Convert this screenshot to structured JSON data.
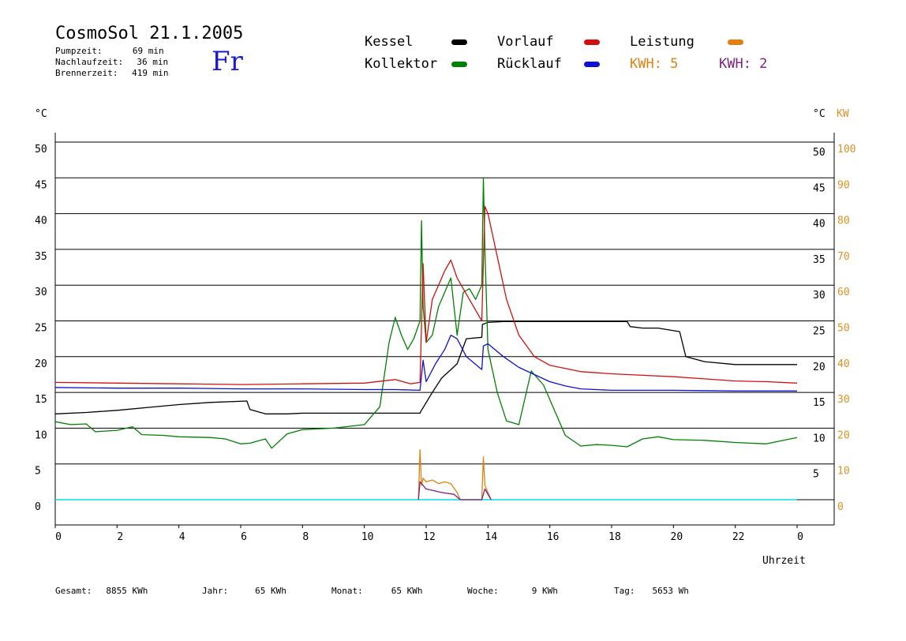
{
  "header": {
    "title": "CosmoSol 21.1.2005",
    "day": "Fr",
    "stats": [
      {
        "label": "Pumpzeit:",
        "value": "69 min"
      },
      {
        "label": "Nachlaufzeit:",
        "value": "36 min"
      },
      {
        "label": "Brennerzeit:",
        "value": "419 min"
      }
    ]
  },
  "legend": {
    "kessel": "Kessel",
    "kollektor": "Kollektor",
    "vorlauf": "Vorlauf",
    "ruecklauf": "Rücklauf",
    "leistung": "Leistung",
    "kwh1": "KWH: 5",
    "kwh2": "KWH: 2"
  },
  "colors": {
    "kessel": "#000000",
    "kollektor": "#008000",
    "vorlauf": "#d01010",
    "ruecklauf": "#1010d0",
    "leistung": "#e08010",
    "kwh2": "#802080",
    "pump": "#00dddd",
    "kw_axis": "#e09020"
  },
  "footer": [
    {
      "label": "Gesamt:",
      "value": "8855 KWh"
    },
    {
      "label": "Jahr:",
      "value": "65 KWh"
    },
    {
      "label": "Monat:",
      "value": "65 KWh"
    },
    {
      "label": "Woche:",
      "value": "9 KWh"
    },
    {
      "label": "Tag:",
      "value": "5653 Wh"
    }
  ],
  "chart_data": {
    "type": "line",
    "xlabel": "Uhrzeit",
    "ylabel_left": "°C",
    "ylabel_right": "°C",
    "ylabel_right2": "KW",
    "xlim": [
      0,
      24
    ],
    "ylim": [
      0,
      50
    ],
    "ylim_kw": [
      0,
      100
    ],
    "x_ticks": [
      "0",
      "2",
      "4",
      "6",
      "8",
      "10",
      "12",
      "14",
      "16",
      "18",
      "20",
      "22",
      "0"
    ],
    "y_ticks": [
      0,
      5,
      10,
      15,
      20,
      25,
      30,
      35,
      40,
      45,
      50
    ],
    "y_ticks_right": [
      5,
      10,
      15,
      20,
      25,
      30,
      35,
      40,
      45,
      50
    ],
    "kw_ticks": [
      0,
      10,
      20,
      30,
      40,
      50,
      60,
      70,
      80,
      90,
      100
    ],
    "grid": "horizontal",
    "series": [
      {
        "name": "Kessel",
        "color": "#000000",
        "x": [
          0,
          1,
          2,
          3,
          4,
          5,
          6.2,
          6.3,
          6.8,
          7.5,
          8,
          9,
          10,
          11,
          11.8,
          11.82,
          12.2,
          12.5,
          13,
          13.3,
          13.8,
          13.82,
          14,
          14.5,
          15,
          16,
          17,
          18,
          18.5,
          18.6,
          19,
          19.5,
          20.2,
          20.4,
          21,
          22,
          23,
          24
        ],
        "y": [
          12,
          12.2,
          12.5,
          12.9,
          13.3,
          13.6,
          13.8,
          12.6,
          12,
          12,
          12.1,
          12.1,
          12.1,
          12.1,
          12.1,
          12.3,
          15,
          17,
          19,
          22.5,
          22.7,
          24.5,
          24.8,
          24.9,
          24.9,
          24.9,
          24.9,
          24.9,
          24.9,
          24.2,
          24,
          24,
          23.5,
          20,
          19.3,
          18.9,
          18.9,
          18.9
        ]
      },
      {
        "name": "Kollektor",
        "color": "#008000",
        "x": [
          0,
          0.5,
          1,
          1.3,
          2,
          2.5,
          2.8,
          3.5,
          4,
          5,
          5.5,
          6,
          6.3,
          6.8,
          7,
          7.5,
          8,
          9,
          10,
          10.5,
          10.8,
          11,
          11.2,
          11.4,
          11.6,
          11.8,
          11.85,
          11.9,
          12,
          12.2,
          12.4,
          12.6,
          12.8,
          13,
          13.2,
          13.4,
          13.6,
          13.8,
          13.85,
          13.9,
          14,
          14.3,
          14.6,
          15,
          15.4,
          15.8,
          16.2,
          16.5,
          17,
          17.5,
          18,
          18.5,
          19,
          19.5,
          20,
          21,
          22,
          23,
          24
        ],
        "y": [
          10.9,
          10.5,
          10.6,
          9.5,
          9.7,
          10.2,
          9.1,
          9,
          8.8,
          8.7,
          8.5,
          7.8,
          7.9,
          8.5,
          7.2,
          9.2,
          9.8,
          10,
          10.5,
          13,
          22,
          25.5,
          23,
          21,
          22.5,
          25,
          39,
          27,
          22,
          23,
          27,
          29,
          31,
          23,
          29,
          29.5,
          28,
          30,
          45,
          35,
          21,
          15,
          11,
          10.5,
          18,
          16,
          12,
          9,
          7.5,
          7.7,
          7.6,
          7.4,
          8.5,
          8.8,
          8.4,
          8.3,
          8,
          7.8,
          8.7
        ]
      },
      {
        "name": "Vorlauf",
        "color": "#d01010",
        "x": [
          0,
          2,
          4,
          6,
          8,
          10,
          11,
          11.5,
          11.8,
          11.9,
          12,
          12.2,
          12.4,
          12.6,
          12.8,
          13,
          13.4,
          13.8,
          13.9,
          14,
          14.3,
          14.6,
          15,
          15.5,
          16,
          17,
          18,
          19,
          20,
          21,
          22,
          23,
          24
        ],
        "y": [
          16.4,
          16.3,
          16.2,
          16.1,
          16.2,
          16.3,
          16.8,
          16.2,
          16.4,
          33,
          22,
          28,
          30,
          32,
          33.5,
          31,
          28,
          25,
          41,
          40,
          34,
          28,
          23,
          20,
          18.8,
          17.9,
          17.6,
          17.4,
          17.2,
          16.9,
          16.6,
          16.5,
          16.3
        ]
      },
      {
        "name": "Rücklauf",
        "color": "#1010d0",
        "x": [
          0,
          2,
          4,
          6,
          8,
          10,
          11,
          11.8,
          11.9,
          12,
          12.3,
          12.6,
          12.8,
          13,
          13.3,
          13.8,
          13.85,
          14,
          14.5,
          15,
          15.5,
          16,
          16.5,
          17,
          18,
          20,
          22,
          24
        ],
        "y": [
          15.7,
          15.6,
          15.6,
          15.5,
          15.5,
          15.4,
          15.4,
          15.3,
          19.5,
          16.5,
          19,
          21,
          23,
          22.5,
          20,
          18.2,
          21.5,
          21.8,
          20,
          18.5,
          17.5,
          16.5,
          15.9,
          15.5,
          15.3,
          15.3,
          15.2,
          15.2
        ]
      },
      {
        "name": "Leistung",
        "color": "#e08010",
        "axis": "kw",
        "x": [
          11.75,
          11.8,
          11.85,
          11.9,
          12,
          12.2,
          12.4,
          12.6,
          12.8,
          13,
          13.1,
          13.8,
          13.85,
          13.9,
          14,
          14.1
        ],
        "y": [
          0,
          14,
          4,
          6,
          5,
          5.5,
          4.5,
          5,
          4.5,
          2,
          0,
          0,
          12,
          4,
          2,
          0
        ]
      },
      {
        "name": "KWH",
        "color": "#802080",
        "axis": "kw",
        "x": [
          11.75,
          11.8,
          12,
          12.5,
          12.9,
          13.1,
          13.8,
          13.9,
          14.1
        ],
        "y": [
          0,
          5,
          3,
          2,
          1.5,
          0,
          0,
          3,
          0
        ]
      }
    ],
    "pump_line": {
      "color": "#00dddd",
      "y": 0
    }
  }
}
